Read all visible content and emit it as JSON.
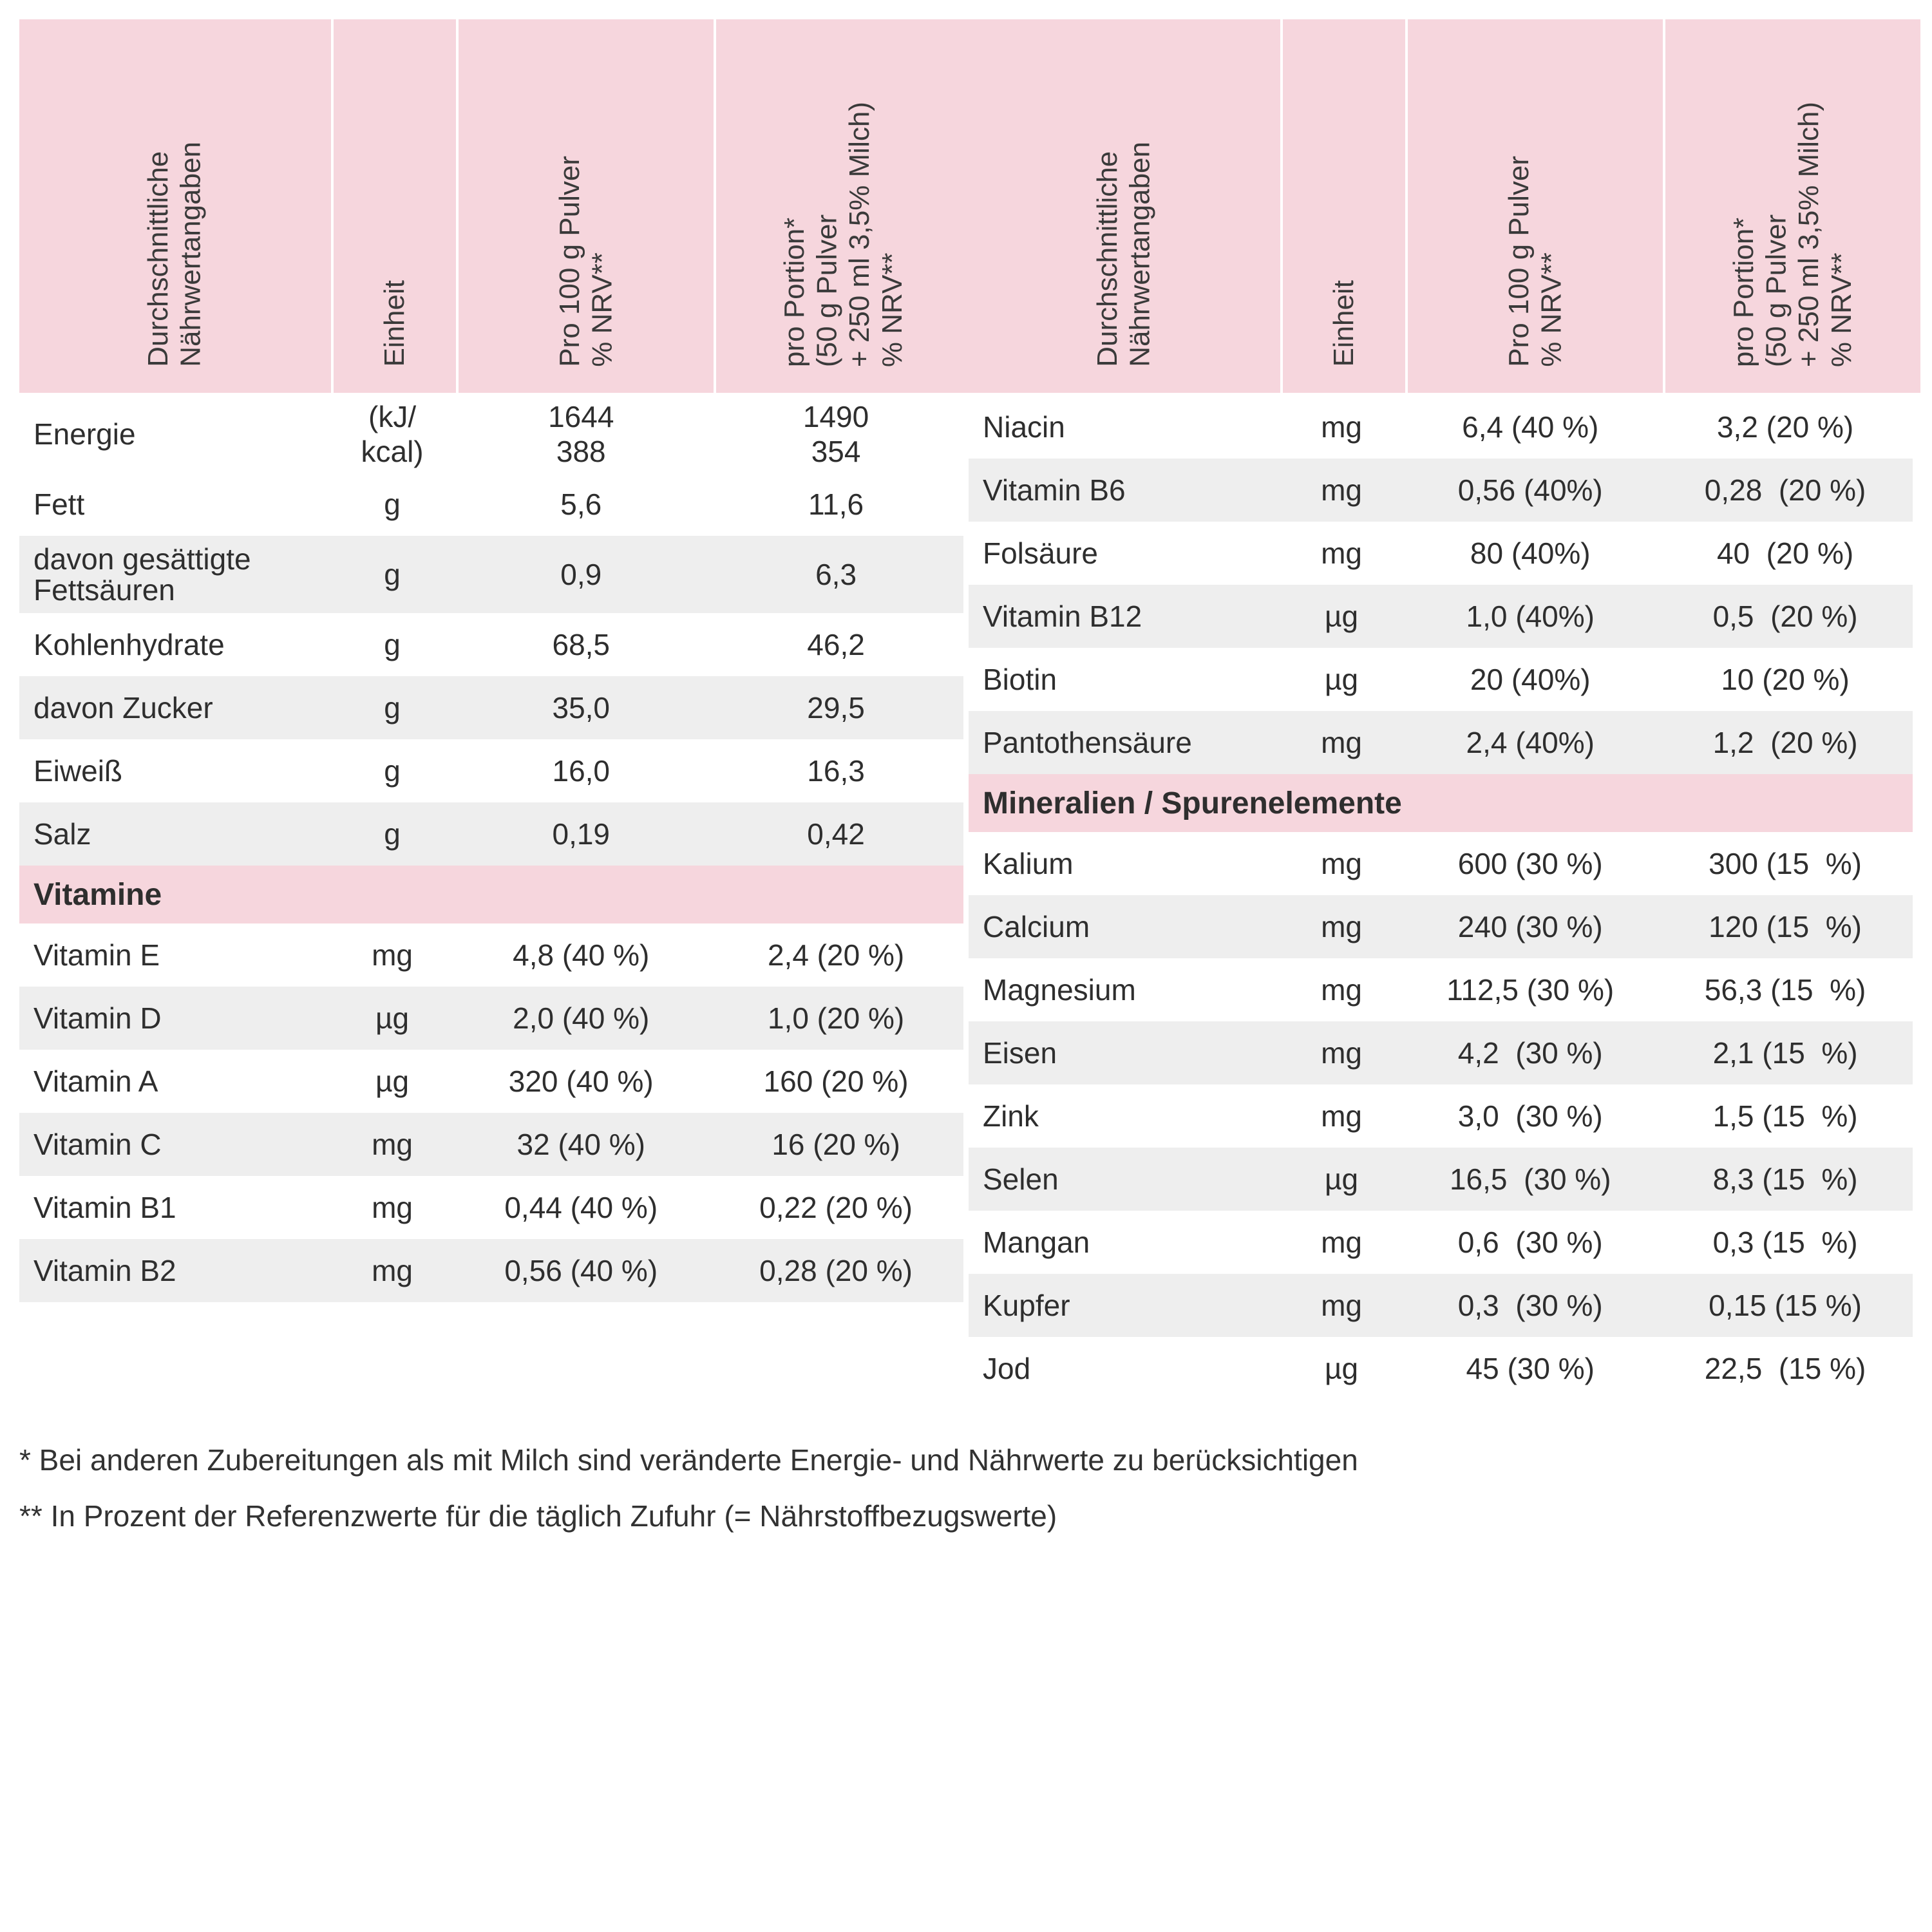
{
  "headers": {
    "name": "Durchschnittliche\nNährwertangaben",
    "unit": "Einheit",
    "per100": "Pro 100 g Pulver\n% NRV**",
    "perPortion": "pro Portion*\n(50 g Pulver\n+ 250 ml 3,5% Milch)\n% NRV**"
  },
  "colors": {
    "header_bg": "#f6d6dd",
    "row_alt_bg": "#eeeeee",
    "text": "#2e2e2e",
    "page_bg": "#ffffff"
  },
  "left": {
    "rows": [
      {
        "name": "Energie",
        "unit": "(kJ/\nkcal)",
        "v1": "1644\n388",
        "v2": "1490\n354",
        "tall": true
      },
      {
        "name": "Fett",
        "unit": "g",
        "v1": "5,6",
        "v2": "11,6"
      },
      {
        "name": "davon gesättigte\nFettsäuren",
        "unit": "g",
        "v1": "0,9",
        "v2": "6,3",
        "tall": true
      },
      {
        "name": "Kohlenhydrate",
        "unit": "g",
        "v1": "68,5",
        "v2": "46,2"
      },
      {
        "name": "davon Zucker",
        "unit": "g",
        "v1": "35,0",
        "v2": "29,5"
      },
      {
        "name": "Eiweiß",
        "unit": "g",
        "v1": "16,0",
        "v2": "16,3"
      },
      {
        "name": "Salz",
        "unit": "g",
        "v1": "0,19",
        "v2": "0,42"
      }
    ],
    "section": "Vitamine",
    "rows2": [
      {
        "name": "Vitamin E",
        "unit": "mg",
        "v1": "4,8 (40 %)",
        "v2": "2,4 (20 %)"
      },
      {
        "name": "Vitamin D",
        "unit": "µg",
        "v1": "2,0 (40 %)",
        "v2": "1,0 (20 %)"
      },
      {
        "name": "Vitamin A",
        "unit": "µg",
        "v1": "320 (40 %)",
        "v2": "160 (20 %)"
      },
      {
        "name": "Vitamin C",
        "unit": "mg",
        "v1": "32 (40 %)",
        "v2": "16 (20 %)"
      },
      {
        "name": "Vitamin B1",
        "unit": "mg",
        "v1": "0,44 (40 %)",
        "v2": "0,22 (20 %)"
      },
      {
        "name": "Vitamin B2",
        "unit": "mg",
        "v1": "0,56 (40 %)",
        "v2": "0,28 (20 %)"
      }
    ]
  },
  "right": {
    "rows": [
      {
        "name": "Niacin",
        "unit": "mg",
        "v1": "6,4 (40 %)",
        "v2": "3,2 (20 %)"
      },
      {
        "name": "Vitamin B6",
        "unit": "mg",
        "v1": "0,56 (40%)",
        "v2": "0,28  (20 %)"
      },
      {
        "name": "Folsäure",
        "unit": "mg",
        "v1": "80 (40%)",
        "v2": "40  (20 %)"
      },
      {
        "name": "Vitamin B12",
        "unit": "µg",
        "v1": "1,0 (40%)",
        "v2": "0,5  (20 %)"
      },
      {
        "name": "Biotin",
        "unit": "µg",
        "v1": "20 (40%)",
        "v2": "10 (20 %)"
      },
      {
        "name": "Pantothensäure",
        "unit": "mg",
        "v1": "2,4 (40%)",
        "v2": "1,2  (20 %)"
      }
    ],
    "section": "Mineralien / Spurenelemente",
    "rows2": [
      {
        "name": "Kalium",
        "unit": "mg",
        "v1": "600 (30 %)",
        "v2": "300 (15  %)"
      },
      {
        "name": "Calcium",
        "unit": "mg",
        "v1": "240 (30 %)",
        "v2": "120 (15  %)"
      },
      {
        "name": "Magnesium",
        "unit": "mg",
        "v1": "112,5 (30 %)",
        "v2": "56,3 (15  %)"
      },
      {
        "name": "Eisen",
        "unit": "mg",
        "v1": "4,2  (30 %)",
        "v2": "2,1 (15  %)"
      },
      {
        "name": "Zink",
        "unit": "mg",
        "v1": "3,0  (30 %)",
        "v2": "1,5 (15  %)"
      },
      {
        "name": "Selen",
        "unit": "µg",
        "v1": "16,5  (30 %)",
        "v2": "8,3 (15  %)"
      },
      {
        "name": "Mangan",
        "unit": "mg",
        "v1": "0,6  (30 %)",
        "v2": "0,3 (15  %)"
      },
      {
        "name": "Kupfer",
        "unit": "mg",
        "v1": "0,3  (30 %)",
        "v2": "0,15 (15 %)"
      },
      {
        "name": "Jod",
        "unit": "µg",
        "v1": "45 (30 %)",
        "v2": "22,5  (15 %)"
      }
    ]
  },
  "footnotes": {
    "f1": "*  Bei anderen Zubereitungen als mit Milch sind veränderte Energie- und Nährwerte zu berücksichtigen",
    "f2": "** In Prozent der Referenzwerte für die täglich Zufuhr (= Nährstoffbezugswerte)"
  }
}
